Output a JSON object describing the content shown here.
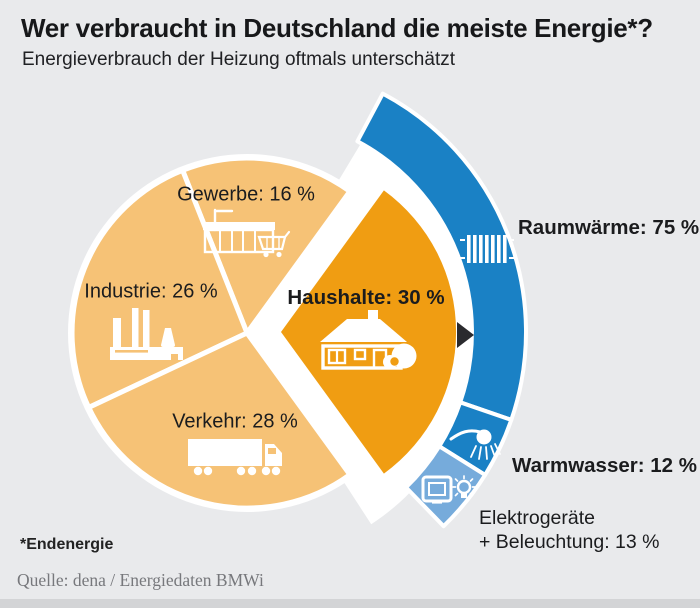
{
  "header": {
    "title": "Wer verbraucht in Deutschland die meiste Energie*?",
    "subtitle": "Energieverbrauch der Heizung oftmals unterschätzt"
  },
  "footer": {
    "footnote": "*Endenergie",
    "source": "Quelle: dena / Energiedaten BMWi"
  },
  "colors": {
    "background": "#e9eaec",
    "bottom_strip": "#d3d4d6",
    "pie_light": "#f6c276",
    "pie_dark": "#f09d12",
    "ring_blue": "#1a81c5",
    "ring_light_blue": "#76abdb",
    "gap_white": "#ffffff",
    "arrow_black": "#2a2a2e"
  },
  "chart_data": {
    "type": "pie",
    "title": "Wer verbraucht in Deutschland die meiste Energie*?",
    "subtitle": "Energieverbrauch der Heizung oftmals unterschätzt",
    "unit": "%",
    "slices": [
      {
        "label": "Gewerbe",
        "value": 16,
        "display": "Gewerbe: 16 %",
        "color": "#f6c276",
        "icon": "shop",
        "exploded": false
      },
      {
        "label": "Industrie",
        "value": 26,
        "display": "Industrie: 26 %",
        "color": "#f6c276",
        "icon": "factory",
        "exploded": false
      },
      {
        "label": "Verkehr",
        "value": 28,
        "display": "Verkehr: 28 %",
        "color": "#f6c276",
        "icon": "truck",
        "exploded": false
      },
      {
        "label": "Haushalte",
        "value": 30,
        "display": "Haushalte: 30 %",
        "color": "#f09d12",
        "icon": "house",
        "exploded": true
      }
    ],
    "breakdown": {
      "of_slice": "Haushalte",
      "shape": "outer-arc",
      "segments": [
        {
          "label": "Raumwärme",
          "value": 75,
          "display": "Raumwärme: 75 %",
          "color": "#1a81c5",
          "icon": "radiator"
        },
        {
          "label": "Warmwasser",
          "value": 12,
          "display": "Warmwasser: 12 %",
          "color": "#1a81c5",
          "icon": "shower"
        },
        {
          "label": "Elektrogeräte + Beleuchtung",
          "value": 13,
          "display_line1": "Elektrogeräte",
          "display_line2": "+ Beleuchtung: 13 %",
          "color": "#76abdb",
          "icon": "tv-bulb"
        }
      ]
    },
    "footnote": "*Endenergie",
    "source": "Quelle: dena / Energiedaten BMWi"
  }
}
